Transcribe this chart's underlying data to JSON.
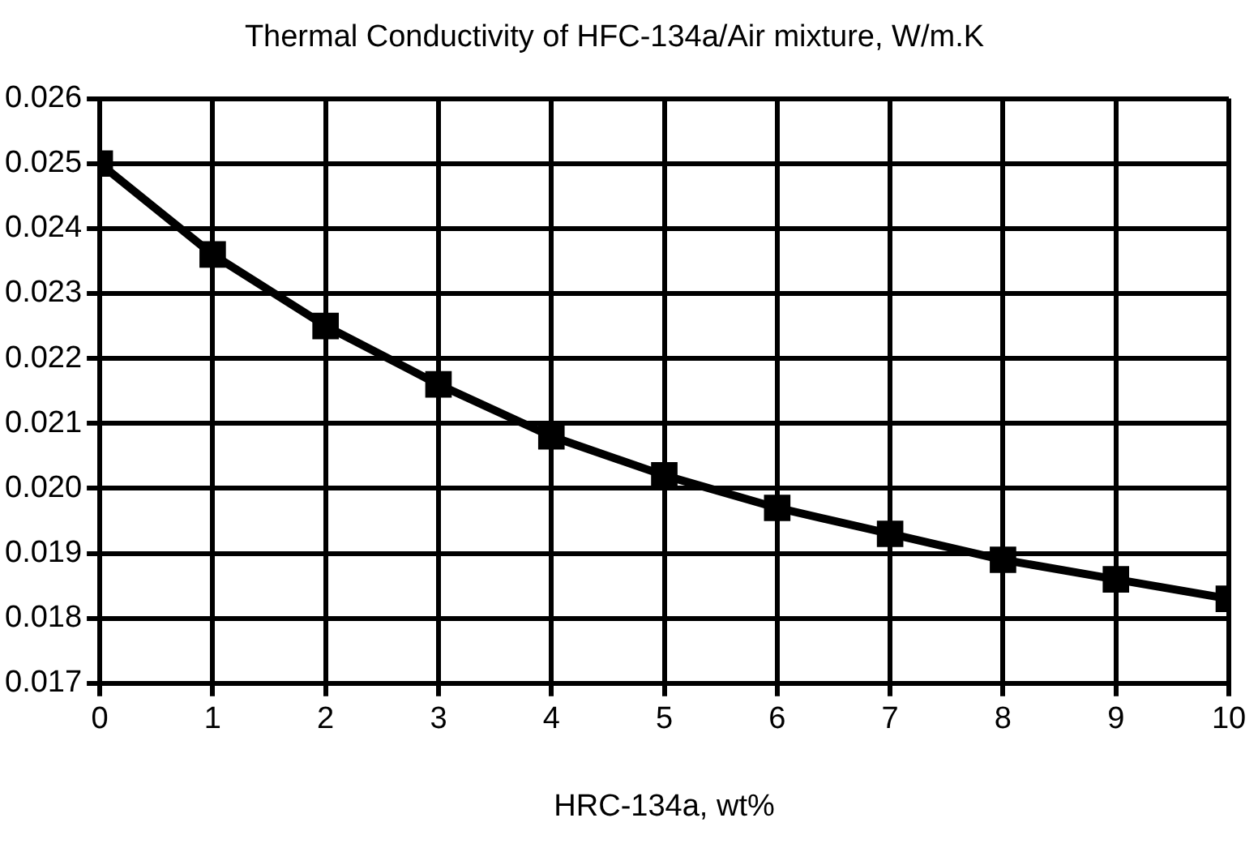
{
  "chart_data": {
    "type": "line",
    "title": "Thermal Conductivity of HFC-134a/Air mixture, W/m.K",
    "xlabel": "HRC-134a, wt%",
    "x": [
      0,
      1,
      2,
      3,
      4,
      5,
      6,
      7,
      8,
      9,
      10
    ],
    "series": [
      {
        "color": "#000000",
        "values": [
          0.025,
          0.0236,
          0.0225,
          0.0216,
          0.0208,
          0.0202,
          0.0197,
          0.0193,
          0.0189,
          0.0186,
          0.0183
        ]
      }
    ],
    "xlim": [
      0,
      10
    ],
    "xticks": [
      0,
      1,
      2,
      3,
      4,
      5,
      6,
      7,
      8,
      9,
      10
    ],
    "ylim": [
      0.017,
      0.026
    ],
    "yticks": [
      0.017,
      0.018,
      0.019,
      {
        "value": 0.02,
        "label": "0.020"
      },
      0.021,
      0.022,
      0.023,
      0.024,
      0.025,
      0.026
    ],
    "grid": true,
    "legend": false,
    "marker": "square",
    "line_style": "solid"
  }
}
